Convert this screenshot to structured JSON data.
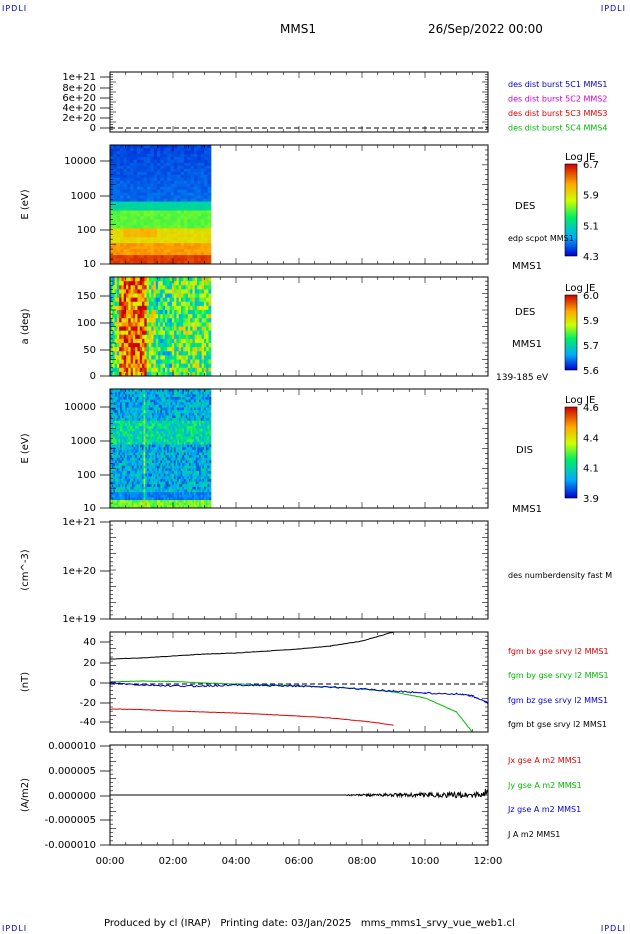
{
  "header": {
    "corner_tl": "IPDLI",
    "corner_tr": "IPDLI",
    "corner_bl": "IPDLI",
    "corner_br": "IPDLI",
    "spacecraft": "MMS1",
    "datetime": "26/Sep/2022 00:00"
  },
  "footer": {
    "text": "Produced by cl (IRAP)   Printing date: 03/Jan/2025   mms_mms1_srvy_vue_web1.cl"
  },
  "colors": {
    "red": "#dd0000",
    "magenta": "#cc00cc",
    "blue": "#0000cc",
    "green": "#00bb00",
    "black": "#000000"
  },
  "chart_data": [
    {
      "type": "line",
      "id": "p1",
      "ylabel": "",
      "ylim": [
        0,
        1.1e+21
      ],
      "yticks": [
        "0",
        "2e+20",
        "4e+20",
        "6e+20",
        "8e+20",
        "1e+21"
      ],
      "legend": [
        {
          "text": "des dist burst 5C1 MMS1",
          "color": "#0000cc"
        },
        {
          "text": "des dist burst 5C2 MMS2",
          "color": "#cc00cc"
        },
        {
          "text": "des dist burst 5C3 MMS3",
          "color": "#dd0000"
        },
        {
          "text": "des dist burst 5C4 MMS4",
          "color": "#00bb00"
        }
      ]
    },
    {
      "type": "heatmap",
      "id": "p2",
      "ylabel": "E (eV)",
      "yticks": [
        "10",
        "100",
        "1000",
        "10000"
      ],
      "yscale": "log",
      "right_labels": [
        "DES",
        "edp scpot MMS1",
        "MMS1"
      ],
      "colorbar": {
        "label": "Log JE",
        "ticks": [
          "6.7",
          "5.9",
          "5.1",
          "4.3"
        ]
      },
      "x_extent_hours": [
        0,
        3.2
      ]
    },
    {
      "type": "heatmap",
      "id": "p3",
      "ylabel": "a (deg)",
      "yticks": [
        "0",
        "50",
        "100",
        "150"
      ],
      "right_labels": [
        "DES",
        "MMS1",
        "139-185 eV"
      ],
      "colorbar": {
        "label": "Log JE",
        "ticks": [
          "6.0",
          "5.9",
          "5.7",
          "5.6"
        ]
      },
      "x_extent_hours": [
        0,
        3.2
      ]
    },
    {
      "type": "heatmap",
      "id": "p4",
      "ylabel": "E (eV)",
      "yticks": [
        "10",
        "100",
        "1000",
        "10000"
      ],
      "yscale": "log",
      "right_labels": [
        "DIS",
        "MMS1"
      ],
      "colorbar": {
        "label": "Log JE",
        "ticks": [
          "4.6",
          "4.4",
          "4.1",
          "3.9"
        ]
      },
      "x_extent_hours": [
        0,
        3.2
      ]
    },
    {
      "type": "line",
      "id": "p5",
      "ylabel": "(cm^-3)",
      "yscale": "log",
      "yticks": [
        "1e+19",
        "1e+20",
        "1e+21"
      ],
      "legend": [
        {
          "text": "des numberdensity fast M",
          "color": "#000000"
        }
      ]
    },
    {
      "type": "line",
      "id": "p6",
      "ylabel": "(nT)",
      "ylim": [
        -48,
        52
      ],
      "yticks": [
        "40",
        "20",
        "0",
        "-20",
        "-40"
      ],
      "x": [
        0,
        1,
        2,
        3,
        4,
        5,
        6,
        7,
        8,
        9,
        10,
        11,
        11.5,
        12
      ],
      "series": [
        {
          "name": "fgm bx gse srvy l2 MMS1",
          "color": "#dd0000",
          "values": [
            -25,
            -25.5,
            -27,
            -28,
            -29,
            -30.5,
            -32,
            -34,
            -37,
            -41,
            null,
            null,
            null,
            null
          ]
        },
        {
          "name": "fgm by gse srvy l2 MMS1",
          "color": "#00bb00",
          "values": [
            2,
            3,
            2.5,
            1,
            0,
            -1,
            -2,
            -3,
            -5,
            -8,
            -14,
            -28,
            -48,
            null
          ]
        },
        {
          "name": "fgm bz gse srvy l2 MMS1",
          "color": "#0000cc",
          "values": [
            1,
            -1,
            -2,
            -2,
            -1,
            -1.5,
            -2,
            -3,
            -5,
            -7,
            -9,
            -10,
            -12,
            -19
          ]
        },
        {
          "name": "fgm bt gse srvy l2 MMS1",
          "color": "#000000",
          "values": [
            25,
            26,
            28,
            30,
            31,
            33,
            35,
            38,
            43,
            52,
            null,
            null,
            null,
            null
          ]
        }
      ]
    },
    {
      "type": "line",
      "id": "p7",
      "ylabel": "(A/m2)",
      "ylim": [
        -1e-05,
        1e-05
      ],
      "yticks": [
        "0.000010",
        "0.000005",
        "0.000000",
        "-0.000005",
        "-0.000010"
      ],
      "legend": [
        {
          "text": "Jx gse A m2 MMS1",
          "color": "#dd0000"
        },
        {
          "text": "Jy gse A m2 MMS1",
          "color": "#00bb00"
        },
        {
          "text": "Jz gse A m2 MMS1",
          "color": "#0000cc"
        },
        {
          "text": "J A m2 MMS1",
          "color": "#000000"
        }
      ]
    }
  ],
  "xaxis": {
    "ticks": [
      "00:00",
      "02:00",
      "04:00",
      "06:00",
      "08:00",
      "10:00",
      "12:00"
    ],
    "range_hours": [
      0,
      12
    ]
  }
}
